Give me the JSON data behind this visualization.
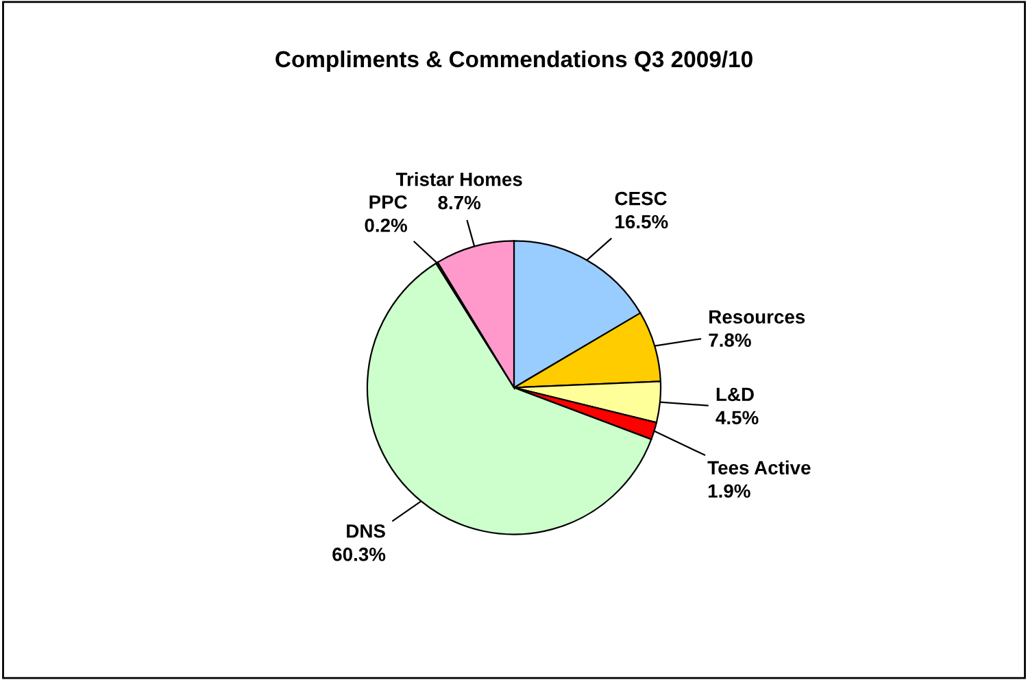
{
  "chart_data": {
    "type": "pie",
    "title": "Compliments & Commendations Q3 2009/10",
    "categories": [
      "CESC",
      "Resources",
      "L&D",
      "Tees Active",
      "DNS",
      "PPC",
      "Tristar Homes"
    ],
    "values": [
      16.5,
      7.8,
      4.5,
      1.9,
      60.3,
      0.2,
      8.7
    ],
    "value_labels": [
      "16.5%",
      "7.8%",
      "4.5%",
      "1.9%",
      "60.3%",
      "0.2%",
      "8.7%"
    ],
    "colors": [
      "#99ccff",
      "#ffcc00",
      "#ffff99",
      "#ff0000",
      "#ccffcc",
      "#993366",
      "#ff99cc"
    ],
    "legend": false
  }
}
